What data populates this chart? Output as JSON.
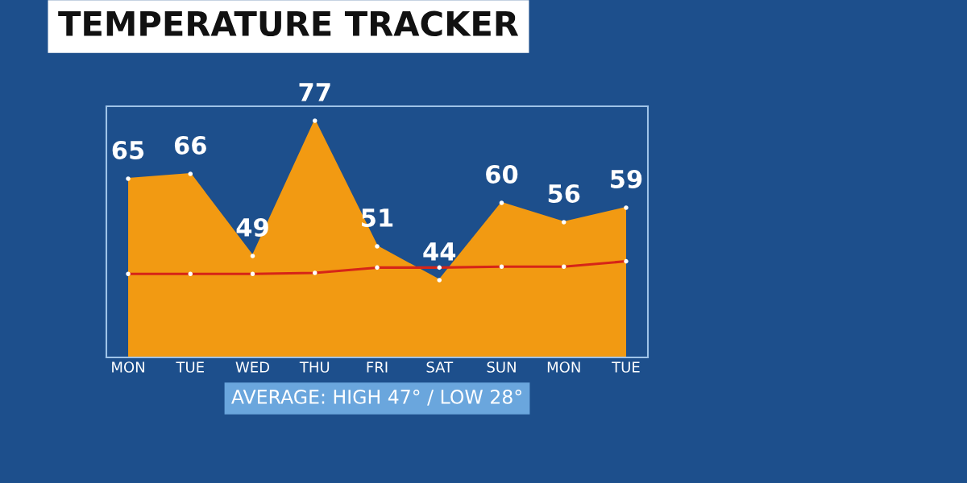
{
  "chart_data": {
    "type": "area",
    "title": "TEMPERATURE TRACKER",
    "categories": [
      "MON",
      "TUE",
      "WED",
      "THU",
      "FRI",
      "SAT",
      "SUN",
      "MON",
      "TUE"
    ],
    "series": [
      {
        "color": "#f29a12",
        "values": [
          65,
          66,
          49,
          77,
          51,
          44,
          60,
          56,
          59
        ],
        "data_labels": true
      },
      {
        "type": "line",
        "color": "#d62518",
        "values": [
          45.3,
          45.3,
          45.3,
          45.5,
          46.6,
          46.6,
          46.8,
          46.8,
          47.9
        ]
      }
    ],
    "ylim": [
      28,
      80
    ],
    "tick_labels": "x",
    "marker": "circle",
    "grid": false,
    "legend": false,
    "annotations": [
      "AVERAGE: HIGH 47° / LOW 28°"
    ]
  }
}
